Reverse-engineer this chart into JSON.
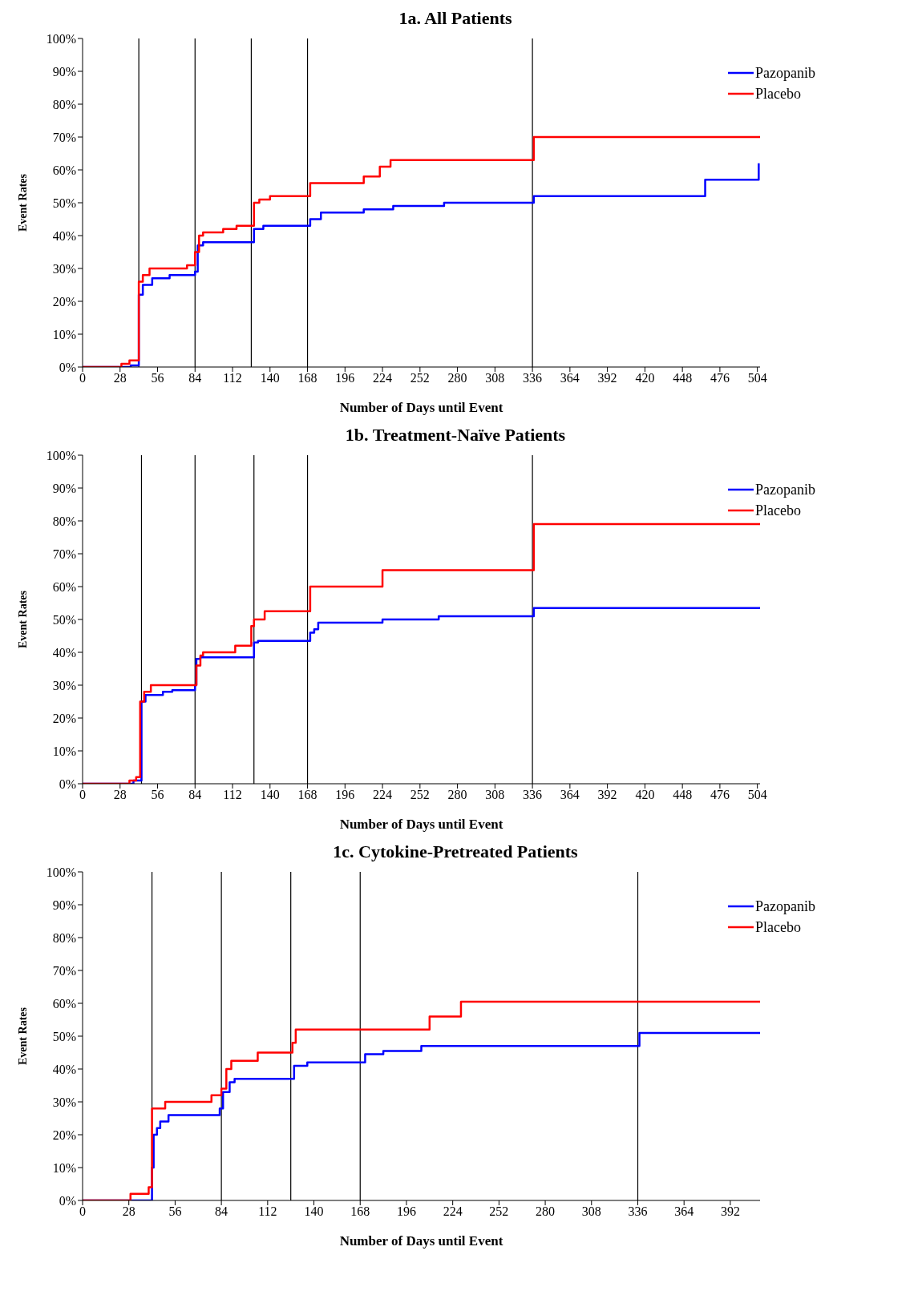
{
  "chart_data": [
    {
      "type": "step",
      "title": "1a.  All Patients",
      "xlabel": "Number of Days until Event",
      "ylabel": "Event Rates",
      "xlim": [
        0,
        506
      ],
      "xticks": [
        0,
        28,
        56,
        84,
        112,
        140,
        168,
        196,
        224,
        252,
        280,
        308,
        336,
        364,
        392,
        420,
        448,
        476,
        504
      ],
      "ylim": [
        0,
        100
      ],
      "yticks": [
        {
          "value": 0,
          "label": "0%"
        },
        {
          "value": 10,
          "label": "10%"
        },
        {
          "value": 20,
          "label": "20%"
        },
        {
          "value": 30,
          "label": "30%"
        },
        {
          "value": 40,
          "label": "40%"
        },
        {
          "value": 50,
          "label": "50%"
        },
        {
          "value": 60,
          "label": "60%"
        },
        {
          "value": 70,
          "label": "70%"
        },
        {
          "value": 80,
          "label": "80%"
        },
        {
          "value": 90,
          "label": "90%"
        },
        {
          "value": 100,
          "label": "100%"
        }
      ],
      "grid": false,
      "legend": "top right",
      "marker": "none",
      "series": [
        {
          "name": "Pazopanib",
          "color": "#0000ff",
          "x": [
            0,
            32,
            36,
            42,
            45,
            52,
            65,
            84,
            86,
            90,
            128,
            135,
            170,
            178,
            210,
            232,
            270,
            337,
            465,
            505
          ],
          "values": [
            0,
            0,
            0.5,
            22,
            25,
            27,
            28,
            29,
            37,
            38,
            42,
            43,
            45,
            47,
            48,
            49,
            50,
            52,
            57,
            62
          ]
        },
        {
          "name": "Placebo",
          "color": "#ff0000",
          "x": [
            0,
            28,
            29,
            35,
            42,
            45,
            50,
            78,
            84,
            87,
            90,
            105,
            115,
            128,
            132,
            140,
            170,
            210,
            222,
            230,
            337,
            506
          ],
          "values": [
            0,
            0,
            1,
            2,
            26,
            28,
            30,
            31,
            35,
            40,
            41,
            42,
            43,
            50,
            51,
            52,
            56,
            58,
            61,
            63,
            70,
            70
          ]
        }
      ],
      "ref_lines": [
        {
          "axis": "x",
          "value": 42,
          "color": "#000000"
        },
        {
          "axis": "x",
          "value": 84,
          "color": "#000000"
        },
        {
          "axis": "x",
          "value": 126,
          "color": "#000000"
        },
        {
          "axis": "x",
          "value": 168,
          "color": "#000000"
        },
        {
          "axis": "x",
          "value": 336,
          "color": "#000000"
        }
      ]
    },
    {
      "type": "step",
      "title": "1b. Treatment-Naïve Patients",
      "xlabel": "Number of Days until Event",
      "ylabel": "Event Rates",
      "xlim": [
        0,
        506
      ],
      "xticks": [
        0,
        28,
        56,
        84,
        112,
        140,
        168,
        196,
        224,
        252,
        280,
        308,
        336,
        364,
        392,
        420,
        448,
        476,
        504
      ],
      "ylim": [
        0,
        100
      ],
      "yticks": [
        {
          "value": 0,
          "label": "0%"
        },
        {
          "value": 10,
          "label": "10%"
        },
        {
          "value": 20,
          "label": "20%"
        },
        {
          "value": 30,
          "label": "30%"
        },
        {
          "value": 40,
          "label": "40%"
        },
        {
          "value": 50,
          "label": "50%"
        },
        {
          "value": 60,
          "label": "60%"
        },
        {
          "value": 70,
          "label": "70%"
        },
        {
          "value": 80,
          "label": "80%"
        },
        {
          "value": 90,
          "label": "90%"
        },
        {
          "value": 100,
          "label": "100%"
        }
      ],
      "grid": false,
      "legend": "top right",
      "marker": "none",
      "series": [
        {
          "name": "Pazopanib",
          "color": "#0000ff",
          "x": [
            0,
            36,
            38,
            44,
            47,
            60,
            67,
            84,
            85,
            88,
            128,
            131,
            170,
            173,
            176,
            224,
            266,
            337,
            506
          ],
          "values": [
            0,
            0,
            1,
            25,
            27,
            28,
            28.5,
            30,
            38,
            38.5,
            43,
            43.5,
            46,
            47,
            49,
            50,
            51,
            53.5,
            53.5
          ]
        },
        {
          "name": "Placebo",
          "color": "#ff0000",
          "x": [
            0,
            34,
            35,
            40,
            43,
            46,
            51,
            84,
            85,
            88,
            90,
            114,
            126,
            128,
            136,
            170,
            224,
            337,
            506
          ],
          "values": [
            0,
            0,
            1,
            2,
            25,
            28,
            30,
            30,
            36,
            39,
            40,
            42,
            48,
            50,
            52.5,
            60,
            65,
            79,
            79
          ]
        }
      ],
      "ref_lines": [
        {
          "axis": "x",
          "value": 44,
          "color": "#000000"
        },
        {
          "axis": "x",
          "value": 84,
          "color": "#000000"
        },
        {
          "axis": "x",
          "value": 128,
          "color": "#000000"
        },
        {
          "axis": "x",
          "value": 168,
          "color": "#000000"
        },
        {
          "axis": "x",
          "value": 336,
          "color": "#000000"
        }
      ]
    },
    {
      "type": "step",
      "title": "1c. Cytokine-Pretreated Patients",
      "xlabel": "Number of Days until Event",
      "ylabel": "Event Rates",
      "xlim": [
        0,
        410
      ],
      "xticks": [
        0,
        28,
        56,
        84,
        112,
        140,
        168,
        196,
        224,
        252,
        280,
        308,
        336,
        364,
        392
      ],
      "ylim": [
        0,
        100
      ],
      "yticks": [
        {
          "value": 0,
          "label": "0%"
        },
        {
          "value": 10,
          "label": "10%"
        },
        {
          "value": 20,
          "label": "20%"
        },
        {
          "value": 30,
          "label": "30%"
        },
        {
          "value": 40,
          "label": "40%"
        },
        {
          "value": 50,
          "label": "50%"
        },
        {
          "value": 60,
          "label": "60%"
        },
        {
          "value": 70,
          "label": "70%"
        },
        {
          "value": 80,
          "label": "80%"
        },
        {
          "value": 90,
          "label": "90%"
        },
        {
          "value": 100,
          "label": "100%"
        }
      ],
      "grid": false,
      "legend": "top right",
      "marker": "none",
      "series": [
        {
          "name": "Pazopanib",
          "color": "#0000ff",
          "x": [
            0,
            40,
            42,
            43,
            45,
            47,
            52,
            83,
            85,
            89,
            92,
            128,
            136,
            171,
            182,
            205,
            337,
            410
          ],
          "values": [
            0,
            0,
            10,
            20,
            22,
            24,
            26,
            28,
            33,
            36,
            37,
            41,
            42,
            44.5,
            45.5,
            47,
            51,
            51
          ]
        },
        {
          "name": "Placebo",
          "color": "#ff0000",
          "x": [
            0,
            28,
            29,
            40,
            42,
            50,
            78,
            84,
            87,
            90,
            106,
            127,
            129,
            210,
            229,
            410
          ],
          "values": [
            0,
            0,
            2,
            4,
            28,
            30,
            32,
            34,
            40,
            42.5,
            45,
            48,
            52,
            56,
            60.5,
            60.5
          ]
        }
      ],
      "ref_lines": [
        {
          "axis": "x",
          "value": 42,
          "color": "#000000"
        },
        {
          "axis": "x",
          "value": 84,
          "color": "#000000"
        },
        {
          "axis": "x",
          "value": 126,
          "color": "#000000"
        },
        {
          "axis": "x",
          "value": 168,
          "color": "#000000"
        },
        {
          "axis": "x",
          "value": 336,
          "color": "#000000"
        }
      ]
    }
  ]
}
